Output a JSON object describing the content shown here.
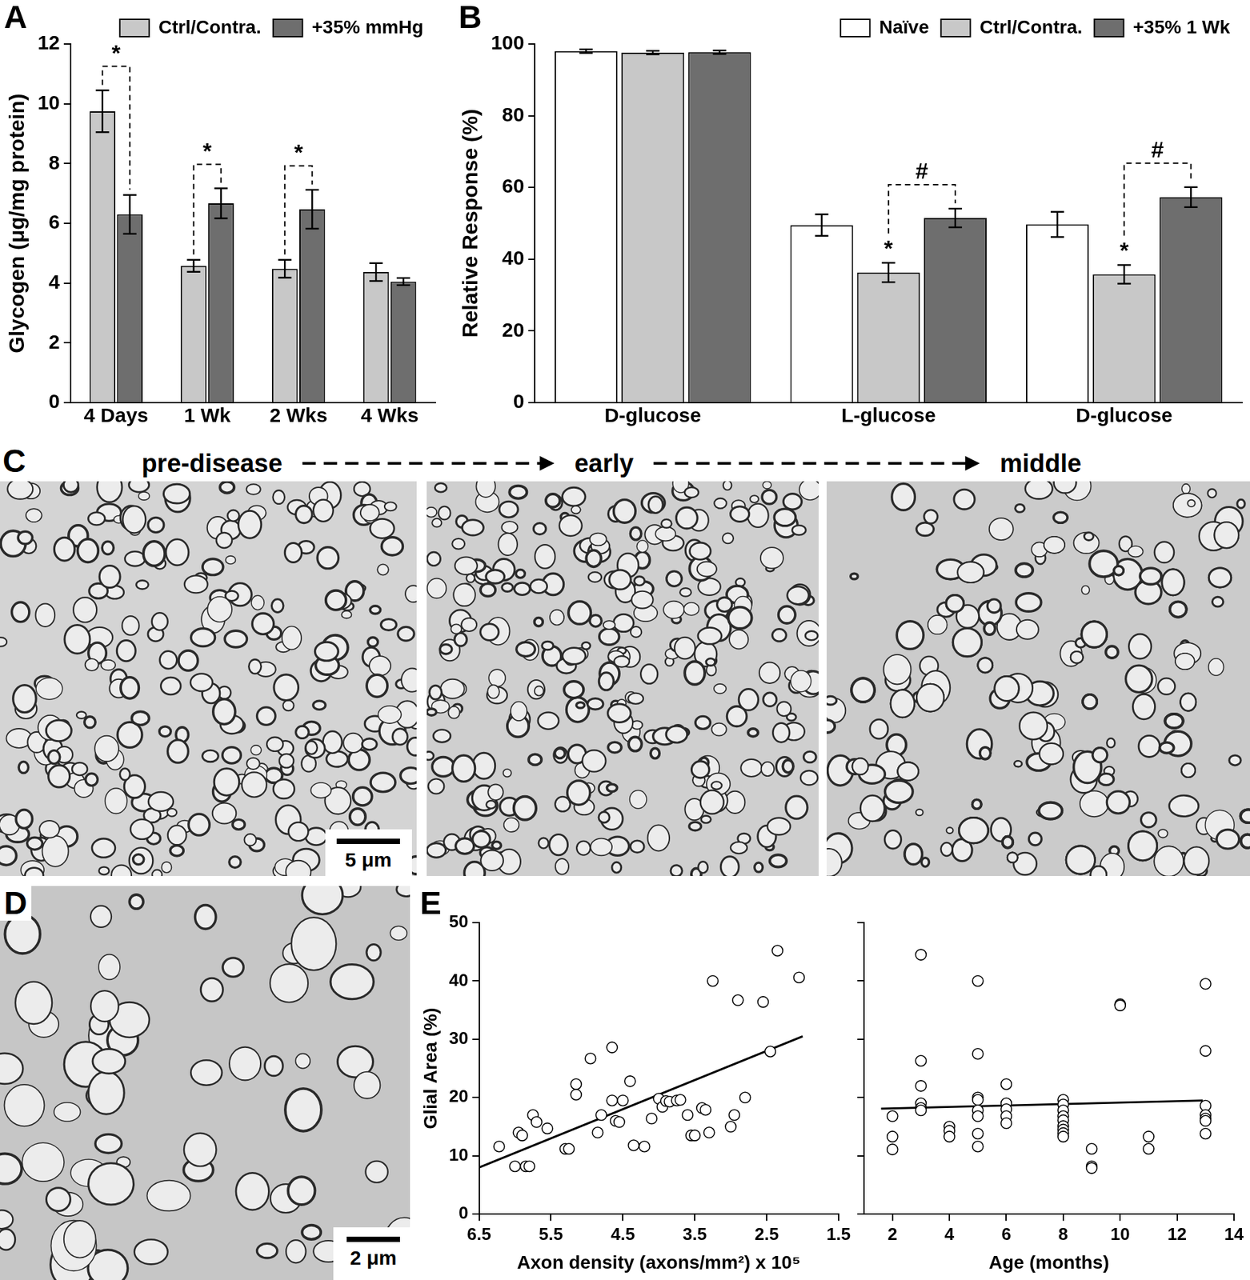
{
  "chart_data": [
    {
      "panel_label": "A",
      "type": "bar",
      "categories": [
        "4 Days",
        "1 Wk",
        "2 Wks",
        "4 Wks"
      ],
      "y_label": "Glycogen (μg/mg protein)",
      "ylim": [
        0,
        12
      ],
      "yticks": [
        0,
        2,
        4,
        6,
        8,
        10,
        12
      ],
      "grid": false,
      "legend": "upper right",
      "series": [
        {
          "name": "Ctrl/Contra.",
          "color": "#c8c8c8",
          "values": [
            9.75,
            4.58,
            4.48,
            4.37
          ],
          "errors": [
            0.7,
            0.2,
            0.3,
            0.3
          ]
        },
        {
          "name": "+35% mmHg",
          "color": "#6e6e6e",
          "values": [
            6.3,
            6.67,
            6.47,
            4.05
          ],
          "errors": [
            0.65,
            0.5,
            0.65,
            0.12
          ]
        }
      ],
      "annotations": [
        {
          "text": "*",
          "category_index": 0,
          "between": [
            "Ctrl/Contra.",
            "+35% mmHg"
          ]
        },
        {
          "text": "*",
          "category_index": 1,
          "between": [
            "Ctrl/Contra.",
            "+35% mmHg"
          ]
        },
        {
          "text": "*",
          "category_index": 2,
          "between": [
            "Ctrl/Contra.",
            "+35% mmHg"
          ]
        }
      ]
    },
    {
      "panel_label": "B",
      "type": "bar",
      "categories": [
        "D-glucose",
        "L-glucose",
        "D-glucose"
      ],
      "y_label": "Relative Response (%)",
      "ylim": [
        0,
        100
      ],
      "yticks": [
        0,
        20,
        40,
        60,
        80,
        100
      ],
      "grid": false,
      "legend": "upper right",
      "series": [
        {
          "name": "Naïve",
          "color": "#ffffff",
          "values": [
            98.0,
            49.5,
            49.7
          ],
          "errors": [
            0.5,
            3.0,
            3.5
          ]
        },
        {
          "name": "Ctrl/Contra.",
          "color": "#c8c8c8",
          "values": [
            97.6,
            36.3,
            35.8
          ],
          "errors": [
            0.5,
            2.7,
            2.6
          ]
        },
        {
          "name": "+35% 1 Wk",
          "color": "#6e6e6e",
          "values": [
            97.7,
            51.5,
            57.3
          ],
          "errors": [
            0.5,
            2.6,
            2.8
          ]
        }
      ],
      "annotations": [
        {
          "text": "*",
          "category_index": 1,
          "series": "Ctrl/Contra."
        },
        {
          "text": "*",
          "category_index": 2,
          "series": "Ctrl/Contra."
        },
        {
          "text": "#",
          "category_index": 1,
          "between": [
            "Ctrl/Contra.",
            "+35% 1 Wk"
          ]
        },
        {
          "text": "#",
          "category_index": 2,
          "between": [
            "Ctrl/Contra.",
            "+35% 1 Wk"
          ]
        }
      ]
    },
    {
      "panel_label": "E",
      "type": "scatter",
      "x_label": "Axon density (axons/mm²) x 10⁵",
      "y_label": "Glial Area (%)",
      "xlim": [
        6.5,
        1.5
      ],
      "xticks": [
        6.5,
        5.5,
        4.5,
        3.5,
        2.5,
        1.5
      ],
      "ylim": [
        0,
        50
      ],
      "yticks": [
        0,
        10,
        20,
        30,
        40,
        50
      ],
      "grid": false,
      "series": [
        {
          "type": "scatter",
          "marker": "open_circle",
          "color": "#000000",
          "x": [
            6.22,
            6.0,
            5.95,
            5.9,
            5.85,
            5.8,
            5.75,
            5.7,
            5.55,
            5.3,
            5.25,
            5.15,
            5.15,
            4.95,
            4.85,
            4.8,
            4.65,
            4.65,
            4.6,
            4.55,
            4.5,
            4.4,
            4.35,
            4.2,
            4.1,
            4.0,
            3.95,
            3.9,
            3.85,
            3.75,
            3.7,
            3.6,
            3.55,
            3.5,
            3.4,
            3.35,
            3.3,
            3.25,
            3.0,
            2.95,
            2.9,
            2.8,
            2.55,
            2.45,
            2.35,
            2.05
          ],
          "y": [
            11.6,
            8.2,
            14.0,
            13.5,
            8.2,
            8.2,
            17.0,
            15.8,
            14.7,
            11.2,
            11.2,
            22.3,
            20.5,
            26.7,
            14.0,
            17.0,
            28.6,
            19.5,
            16.0,
            15.8,
            19.5,
            22.8,
            11.8,
            11.6,
            16.4,
            19.8,
            18.4,
            19.4,
            19.3,
            19.5,
            19.6,
            17.0,
            13.5,
            13.5,
            18.2,
            17.9,
            14.0,
            40.0,
            15.0,
            17.0,
            36.7,
            20.0,
            36.4,
            27.9,
            45.2,
            40.6
          ]
        },
        {
          "type": "line",
          "line_style": "solid",
          "color": "#000000",
          "x": [
            6.5,
            2.0
          ],
          "y": [
            8.0,
            30.5
          ]
        }
      ]
    },
    {
      "type": "scatter",
      "x_label": "Age (months)",
      "xlim": [
        1,
        14
      ],
      "xticks": [
        2,
        4,
        6,
        8,
        10,
        12,
        14
      ],
      "ylim": [
        0,
        50
      ],
      "yticks": [
        0,
        10,
        20,
        30,
        40,
        50
      ],
      "grid": false,
      "tick_labels": "x",
      "series": [
        {
          "type": "scatter",
          "marker": "open_circle",
          "color": "#000000",
          "x": [
            2,
            2,
            2,
            3,
            3,
            3,
            3,
            3,
            3,
            4,
            4,
            4,
            5,
            5,
            5,
            5,
            5,
            5,
            5,
            5,
            6,
            6,
            6,
            6,
            6,
            8,
            8,
            8,
            8,
            8,
            8,
            8,
            8,
            8,
            9,
            9,
            9,
            10,
            10,
            11,
            11,
            13,
            13,
            13,
            13,
            13,
            13,
            13
          ],
          "y": [
            16.8,
            13.3,
            11.1,
            44.5,
            26.3,
            22.0,
            19.0,
            18.2,
            17.8,
            15.0,
            14.3,
            13.3,
            40.0,
            27.5,
            20.0,
            19.6,
            17.8,
            16.8,
            13.8,
            11.6,
            22.3,
            19.0,
            18.0,
            16.8,
            15.6,
            19.6,
            18.8,
            17.8,
            16.8,
            16.1,
            15.1,
            14.5,
            13.9,
            13.3,
            11.2,
            8.2,
            7.9,
            36.0,
            35.8,
            13.3,
            11.2,
            39.5,
            28.0,
            18.6,
            17.0,
            16.4,
            16.0,
            13.8
          ]
        },
        {
          "type": "line",
          "line_style": "solid",
          "color": "#000000",
          "x": [
            1.6,
            12.9
          ],
          "y": [
            18.1,
            19.5
          ]
        }
      ]
    }
  ],
  "images": [
    {
      "panel_label": "C",
      "stages": [
        "pre-disease",
        "early",
        "middle"
      ],
      "scale_bar": "5 μm"
    },
    {
      "panel_label": "D",
      "scale_bar": "2 μm"
    }
  ]
}
